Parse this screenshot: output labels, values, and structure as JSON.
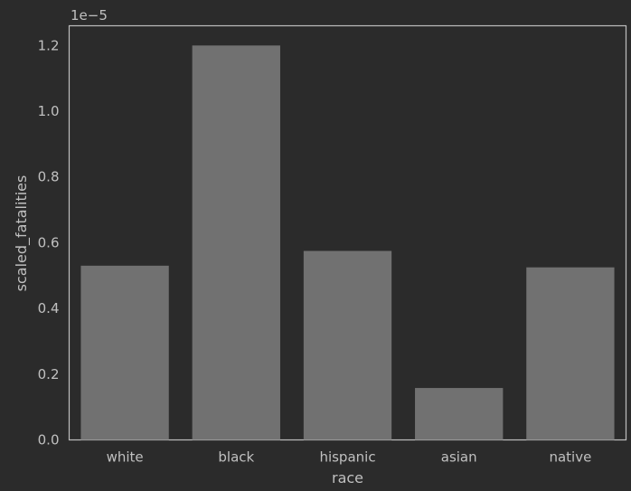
{
  "colors": {
    "background": "#2b2b2b",
    "bar": "#717171",
    "text": "#c0c0c0",
    "frame": "#bdbdbd"
  },
  "chart_data": {
    "type": "bar",
    "categories": [
      "white",
      "black",
      "hispanic",
      "asian",
      "native"
    ],
    "values": [
      0.53,
      1.2,
      0.575,
      0.158,
      0.525
    ],
    "value_multiplier": "1e−5",
    "xlabel": "race",
    "ylabel": "scaled_fatalities",
    "ylim": [
      0,
      1.26
    ],
    "yticks": [
      0.0,
      0.2,
      0.4,
      0.6,
      0.8,
      1.0,
      1.2
    ],
    "ytick_labels": [
      "0.0",
      "0.2",
      "0.4",
      "0.6",
      "0.8",
      "1.0",
      "1.2"
    ],
    "grid": false,
    "legend": "none"
  }
}
